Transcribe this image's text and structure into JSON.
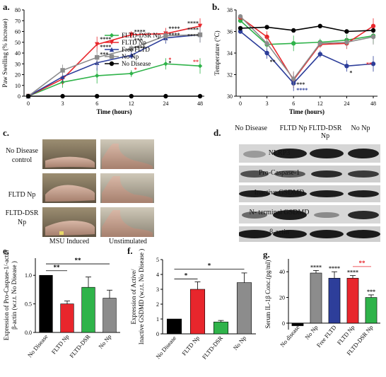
{
  "panels": {
    "a": "a.",
    "b": "b.",
    "c": "c.",
    "d": "d.",
    "e": "e.",
    "f": "f.",
    "g": "g."
  },
  "photos": {
    "rows": [
      "No Disease control",
      "FLTD Np",
      "FLTD-DSR Np"
    ],
    "cols": [
      "MSU Induced",
      "Unstimulated"
    ]
  },
  "western_blot": {
    "lanes": [
      "No Disease",
      "FLTD Np",
      "FLTD-DSR Np",
      "No Np"
    ],
    "bands": [
      "NLRP3",
      "Pro-Caspase-1",
      "Inactive GSDMD",
      "N- terminal GSDMD",
      "β-actin"
    ]
  },
  "colors": {
    "fltd_dsr": "#2fb34a",
    "fltd": "#e8262c",
    "free_fltd": "#2d3e9a",
    "no_np": "#8c8c8c",
    "no_disease": "#000000"
  },
  "chart_data": [
    {
      "type": "line",
      "panel": "a",
      "xlabel": "Time (hours)",
      "ylabel": "Paw Swelling (% increase)",
      "x": [
        0,
        3,
        6,
        12,
        24,
        48
      ],
      "xtick_labels": [
        "0",
        "3",
        "6",
        "12",
        "24",
        "48"
      ],
      "ylim": [
        0,
        80
      ],
      "yticks": [
        0,
        10,
        20,
        30,
        40,
        50,
        60,
        70,
        80
      ],
      "legend_placement": "middle-right",
      "series": [
        {
          "name": "FLTD-DSR Np",
          "color": "#2fb34a",
          "marker": "diamond",
          "values": [
            0,
            13,
            19,
            21,
            30,
            28
          ]
        },
        {
          "name": "FLTD Np",
          "color": "#e8262c",
          "marker": "triangle-down",
          "values": [
            0,
            16,
            48,
            57,
            58,
            65
          ]
        },
        {
          "name": "Free FLTD",
          "color": "#2d3e9a",
          "marker": "triangle-up",
          "values": [
            0,
            18,
            31,
            38,
            54,
            57
          ]
        },
        {
          "name": "No Np",
          "color": "#8c8c8c",
          "marker": "square",
          "values": [
            0,
            24,
            36,
            44,
            56,
            57
          ]
        },
        {
          "name": "No Disease",
          "color": "#000000",
          "marker": "circle",
          "values": [
            0,
            0,
            0,
            0,
            0,
            0
          ]
        }
      ],
      "annotations": [
        {
          "x": 6,
          "y": 53,
          "text": "****",
          "color": "#222222"
        },
        {
          "x": 6,
          "y": 46,
          "text": "****",
          "color": "#222222"
        },
        {
          "x": 6,
          "y": 39,
          "text": "***",
          "color": "#222222"
        },
        {
          "x": 12,
          "y": 60,
          "text": "****",
          "color": "#222222"
        },
        {
          "x": 12,
          "y": 52,
          "text": "***",
          "color": "#222222"
        },
        {
          "x": 12,
          "y": 45,
          "text": "****",
          "color": "#222222"
        },
        {
          "x": 12,
          "y": 25,
          "text": "*",
          "color": "#e8262c"
        },
        {
          "x": 24,
          "y": 63,
          "text": "****",
          "color": "#222222"
        },
        {
          "x": 24,
          "y": 57,
          "text": "****",
          "color": "#222222"
        },
        {
          "x": 24,
          "y": 34,
          "text": "*",
          "color": "#e8262c"
        },
        {
          "x": 24,
          "y": 31,
          "text": "*",
          "color": "#222222"
        },
        {
          "x": 48,
          "y": 68,
          "text": "****",
          "color": "#222222"
        },
        {
          "x": 48,
          "y": 62,
          "text": "****",
          "color": "#222222"
        },
        {
          "x": 48,
          "y": 56,
          "text": "****",
          "color": "#222222"
        },
        {
          "x": 48,
          "y": 32,
          "text": "**",
          "color": "#e8262c"
        }
      ]
    },
    {
      "type": "line",
      "panel": "b",
      "xlabel": "Time (hours)",
      "ylabel": "Temperature (°C)",
      "x": [
        0,
        3,
        6,
        12,
        24,
        48
      ],
      "xtick_labels": [
        "0",
        "3",
        "6",
        "12",
        "24",
        "48"
      ],
      "ylim": [
        30,
        38
      ],
      "yticks": [
        30,
        32,
        34,
        36,
        38
      ],
      "series": [
        {
          "name": "FLTD-DSR Np",
          "color": "#2fb34a",
          "values": [
            37.0,
            34.8,
            34.9,
            35.0,
            35.2,
            35.6
          ]
        },
        {
          "name": "FLTD Np",
          "color": "#e8262c",
          "values": [
            37.3,
            35.5,
            31.5,
            34.8,
            34.9,
            36.5
          ]
        },
        {
          "name": "Free FLTD",
          "color": "#2d3e9a",
          "values": [
            36.0,
            34.0,
            31.2,
            33.9,
            32.8,
            33.0
          ]
        },
        {
          "name": "No Np",
          "color": "#8c8c8c",
          "values": [
            37.4,
            34.9,
            31.6,
            34.9,
            35.0,
            35.5
          ]
        },
        {
          "name": "No Disease",
          "color": "#000000",
          "values": [
            36.3,
            36.4,
            36.1,
            36.5,
            36.0,
            36.1
          ]
        }
      ],
      "annotations": [
        {
          "x": 3,
          "y": 33.2,
          "text": "**",
          "color": "#222222"
        },
        {
          "x": 6,
          "y": 30.6,
          "text": "****",
          "color": "#2d3e9a"
        },
        {
          "x": 6,
          "y": 31.1,
          "text": "***",
          "color": "#222222"
        },
        {
          "x": 24,
          "y": 32.2,
          "text": "*",
          "color": "#222222"
        },
        {
          "x": 48,
          "y": 33.0,
          "text": "**",
          "color": "#e8262c"
        }
      ]
    },
    {
      "type": "bar",
      "panel": "e",
      "ylabel": "Expression of Pro-Caspase-1/ β-actin (w.r.t. No Disease )",
      "categories": [
        "No Disease",
        "FLTD Np",
        "FLTD-DSR",
        "No Np"
      ],
      "values": [
        1.0,
        0.5,
        0.79,
        0.6
      ],
      "errors": [
        0.0,
        0.05,
        0.18,
        0.14
      ],
      "colors": [
        "#000000",
        "#e8262c",
        "#2fb34a",
        "#8c8c8c"
      ],
      "ylim": [
        0.0,
        1.3
      ],
      "yticks": [
        0.0,
        0.5,
        1.0
      ],
      "ytick_labels": [
        "0.0",
        "0.5",
        "1.0"
      ],
      "brackets": [
        {
          "from": 0,
          "to": 1,
          "y": 1.08,
          "text": "**"
        },
        {
          "from": 0,
          "to": 3,
          "y": 1.2,
          "text": "**"
        }
      ]
    },
    {
      "type": "bar",
      "panel": "f",
      "ylabel": "Expression of Active/ Inactive GSDMD (w.r.t. No Disease )",
      "categories": [
        "No Disease",
        "FLTD Np",
        "FLTD-DSR",
        "No Np"
      ],
      "values": [
        1.0,
        3.0,
        0.8,
        3.45
      ],
      "errors": [
        0.0,
        0.5,
        0.1,
        0.65
      ],
      "colors": [
        "#000000",
        "#e8262c",
        "#2fb34a",
        "#8c8c8c"
      ],
      "ylim": [
        0,
        5
      ],
      "yticks": [
        0,
        1,
        2,
        3,
        4,
        5
      ],
      "brackets": [
        {
          "from": 0,
          "to": 1,
          "y": 3.7,
          "text": "*"
        },
        {
          "from": 0,
          "to": 3,
          "y": 4.35,
          "text": "*"
        }
      ]
    },
    {
      "type": "bar",
      "panel": "g",
      "ylabel": "Serum IL-1β Conc.(pg/ml)",
      "categories": [
        "No disease",
        "No Np",
        "Free FLTD",
        "FLTD Np",
        "FLTD-DSR Np"
      ],
      "values": [
        -2,
        39,
        35,
        35,
        20
      ],
      "errors": [
        0,
        2,
        5,
        2,
        2
      ],
      "colors": [
        "#000000",
        "#8c8c8c",
        "#2d3e9a",
        "#e8262c",
        "#2fb34a"
      ],
      "ylim": [
        -5,
        50
      ],
      "yticks": [
        0,
        20,
        40
      ],
      "bar_labels": [
        {
          "index": 1,
          "text": "****",
          "color": "#222222"
        },
        {
          "index": 2,
          "text": "****",
          "color": "#222222"
        },
        {
          "index": 3,
          "text": "****",
          "color": "#222222"
        },
        {
          "index": 4,
          "text": "***",
          "color": "#222222"
        }
      ],
      "brackets": [
        {
          "from": 3,
          "to": 4,
          "y": 44,
          "text": "**",
          "color": "#e8262c"
        }
      ]
    }
  ]
}
